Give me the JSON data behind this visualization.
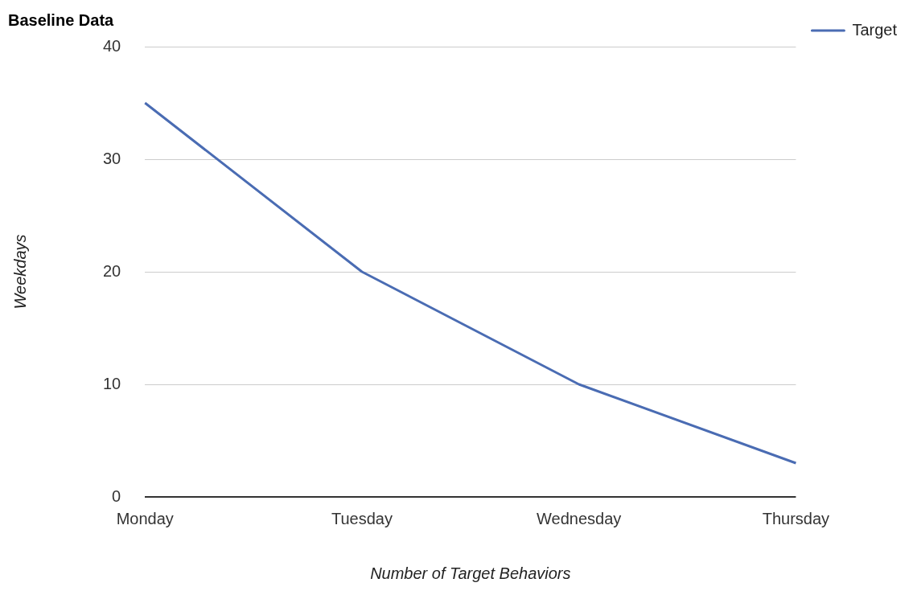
{
  "chart_data": {
    "type": "line",
    "title": "Baseline Data",
    "xlabel": "Number of Target Behaviors",
    "ylabel": "Weekdays",
    "categories": [
      "Monday",
      "Tuesday",
      "Wednesday",
      "Thursday"
    ],
    "series": [
      {
        "name": "Target",
        "color": "#4a6cb3",
        "values": [
          35,
          20,
          10,
          3
        ]
      }
    ],
    "ylim": [
      0,
      40
    ],
    "yticks": [
      0,
      10,
      20,
      30,
      40
    ],
    "grid": "y",
    "legend": "top right",
    "marker": "none",
    "line_style": "solid"
  }
}
